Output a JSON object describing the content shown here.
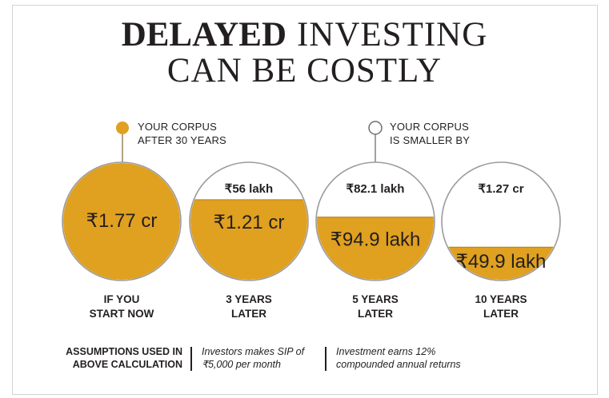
{
  "title": {
    "bold": "DELAYED",
    "rest": "INVESTING",
    "line2": "CAN BE COSTLY"
  },
  "legend": {
    "filled": "YOUR CORPUS AFTER 30 YEARS",
    "filled_lines": [
      "YOUR CORPUS",
      "AFTER 30 YEARS"
    ],
    "empty": "YOUR CORPUS IS SMALLER BY",
    "empty_lines": [
      "YOUR CORPUS",
      "IS SMALLER BY"
    ]
  },
  "colors": {
    "fill": "#e0a020",
    "outline": "#9b9b9b",
    "text": "#231f20"
  },
  "chart_data": {
    "type": "bar",
    "title": "DELAYED INVESTING CAN BE COSTLY",
    "unit": "₹ lakh",
    "categories": [
      "IF YOU START NOW",
      "3 YEARS LATER",
      "5 YEARS LATER",
      "10 YEARS LATER"
    ],
    "category_lines": [
      [
        "IF YOU",
        "START NOW"
      ],
      [
        "3 YEARS",
        "LATER"
      ],
      [
        "5 YEARS",
        "LATER"
      ],
      [
        "10 YEARS",
        "LATER"
      ]
    ],
    "series": [
      {
        "name": "YOUR CORPUS AFTER 30 YEARS",
        "values": [
          177,
          121,
          94.9,
          49.9
        ],
        "labels": [
          "₹1.77 cr",
          "₹1.21 cr",
          "₹94.9 lakh",
          "₹49.9 lakh"
        ]
      },
      {
        "name": "YOUR CORPUS IS SMALLER BY",
        "values": [
          0,
          56,
          82.1,
          127
        ],
        "labels": [
          "",
          "₹56 lakh",
          "₹82.1 lakh",
          "₹1.27 cr"
        ]
      }
    ],
    "total": 177
  },
  "footer": {
    "heading_lines": [
      "ASSUMPTIONS USED IN",
      "ABOVE CALCULATION"
    ],
    "note1_lines": [
      "Investors makes SIP of",
      "₹5,000 per month"
    ],
    "note2_lines": [
      "Investment earns 12%",
      "compounded annual returns"
    ]
  }
}
